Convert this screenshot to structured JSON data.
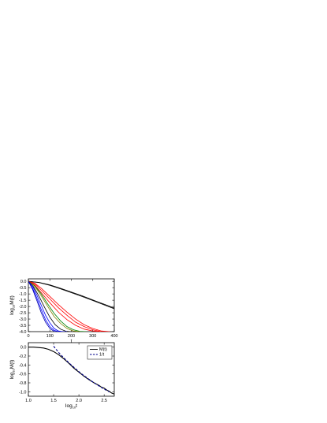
{
  "chart_data": [
    {
      "type": "line",
      "xlim": [
        0,
        400
      ],
      "ylim": [
        -4.0,
        0.2
      ],
      "x_ticks": [
        "0",
        "100",
        "200",
        "300",
        "400"
      ],
      "y_ticks": [
        "0.0",
        "-0.5",
        "-1.0",
        "-1.5",
        "-2.0",
        "-2.5",
        "-3.0",
        "-3.5",
        "-4.0"
      ],
      "xlabel": "t",
      "ylabel": {
        "main": "log",
        "sub": "10",
        "rest": "M(t)"
      },
      "series": [
        {
          "color": "#000000",
          "x": [
            0,
            50,
            100,
            150,
            200,
            250,
            300,
            350,
            400
          ],
          "y": [
            0,
            -0.08,
            -0.28,
            -0.55,
            -0.85,
            -1.15,
            -1.48,
            -1.8,
            -2.12
          ]
        },
        {
          "color": "#000000",
          "x": [
            0,
            50,
            100,
            150,
            200,
            250,
            300,
            350,
            400
          ],
          "y": [
            0,
            -0.1,
            -0.32,
            -0.6,
            -0.9,
            -1.2,
            -1.52,
            -1.85,
            -2.18
          ]
        },
        {
          "color": "#ff0000",
          "x": [
            0,
            30,
            60,
            100,
            140,
            180,
            220,
            260,
            300,
            340,
            380
          ],
          "y": [
            0,
            -0.15,
            -0.55,
            -1.2,
            -1.85,
            -2.45,
            -3.0,
            -3.45,
            -3.75,
            -3.95,
            -4.0
          ]
        },
        {
          "color": "#ff0000",
          "x": [
            0,
            30,
            60,
            100,
            140,
            180,
            220,
            260,
            300,
            340,
            380
          ],
          "y": [
            0,
            -0.2,
            -0.7,
            -1.4,
            -2.1,
            -2.7,
            -3.25,
            -3.6,
            -3.85,
            -4.0,
            -4.0
          ]
        },
        {
          "color": "#ff0000",
          "x": [
            0,
            30,
            60,
            100,
            140,
            180,
            220,
            260,
            300,
            340
          ],
          "y": [
            0,
            -0.3,
            -0.9,
            -1.7,
            -2.45,
            -3.05,
            -3.5,
            -3.8,
            -3.95,
            -4.0
          ]
        },
        {
          "color": "#008000",
          "x": [
            0,
            30,
            60,
            90,
            120,
            150,
            180,
            210,
            240,
            270
          ],
          "y": [
            0,
            -0.35,
            -1.0,
            -1.8,
            -2.55,
            -3.15,
            -3.6,
            -3.85,
            -3.98,
            -4.0
          ]
        },
        {
          "color": "#808000",
          "x": [
            0,
            30,
            60,
            90,
            120,
            150,
            180,
            210,
            240
          ],
          "y": [
            0,
            -0.4,
            -1.15,
            -2.0,
            -2.8,
            -3.35,
            -3.75,
            -3.95,
            -4.0
          ]
        },
        {
          "color": "#000000",
          "x": [
            0,
            25,
            50,
            75,
            100,
            125,
            150,
            175,
            200
          ],
          "y": [
            0,
            -0.45,
            -1.2,
            -2.05,
            -2.85,
            -3.45,
            -3.8,
            -3.97,
            -4.0
          ]
        },
        {
          "color": "#0000ff",
          "x": [
            0,
            20,
            40,
            60,
            80,
            100,
            120,
            140,
            160,
            180
          ],
          "y": [
            0,
            -0.4,
            -1.1,
            -1.9,
            -2.7,
            -3.3,
            -3.75,
            -3.95,
            -4.0,
            -4.0
          ]
        },
        {
          "color": "#0000ff",
          "x": [
            0,
            20,
            40,
            60,
            80,
            100,
            120,
            140,
            160
          ],
          "y": [
            0,
            -0.55,
            -1.35,
            -2.25,
            -3.05,
            -3.6,
            -3.9,
            -4.0,
            -4.0
          ]
        },
        {
          "color": "#0000aa",
          "x": [
            0,
            20,
            40,
            60,
            80,
            100,
            120,
            140
          ],
          "y": [
            0,
            -0.65,
            -1.55,
            -2.5,
            -3.25,
            -3.75,
            -3.98,
            -4.0
          ]
        }
      ]
    },
    {
      "type": "line",
      "xlim": [
        1.0,
        2.7
      ],
      "ylim": [
        -1.1,
        0.1
      ],
      "x_ticks": [
        "1.0",
        "1.5",
        "2.0",
        "2.5"
      ],
      "y_ticks": [
        "0.0",
        "-0.2",
        "-0.4",
        "-0.6",
        "-0.8",
        "-1.0"
      ],
      "xlabel": {
        "main": "log",
        "sub": "10",
        "rest": "t"
      },
      "ylabel": {
        "main": "log",
        "sub": "10",
        "rest": "M(t)"
      },
      "legend_position": "top-right",
      "series": [
        {
          "name": "M(t)",
          "color": "#000000",
          "style": "solid",
          "x": [
            1.0,
            1.1,
            1.2,
            1.3,
            1.4,
            1.5,
            1.6,
            1.7,
            1.8,
            1.9,
            2.0,
            2.1,
            2.2,
            2.3,
            2.4,
            2.45,
            2.5,
            2.55,
            2.6,
            2.65,
            2.7
          ],
          "y": [
            0.0,
            0.0,
            -0.01,
            -0.02,
            -0.05,
            -0.1,
            -0.17,
            -0.26,
            -0.36,
            -0.47,
            -0.56,
            -0.65,
            -0.73,
            -0.8,
            -0.86,
            -0.9,
            -0.92,
            -0.96,
            -0.99,
            -1.03,
            -1.05
          ]
        },
        {
          "name": "1/t",
          "color": "#00008b",
          "style": "dashed",
          "x": [
            1.5,
            1.6,
            1.7,
            1.8,
            1.9,
            2.0,
            2.1,
            2.2,
            2.3,
            2.4,
            2.5,
            2.6
          ],
          "y": [
            0.02,
            -0.12,
            -0.24,
            -0.35,
            -0.45,
            -0.55,
            -0.64,
            -0.72,
            -0.8,
            -0.87,
            -0.94,
            -1.0
          ]
        }
      ]
    }
  ]
}
